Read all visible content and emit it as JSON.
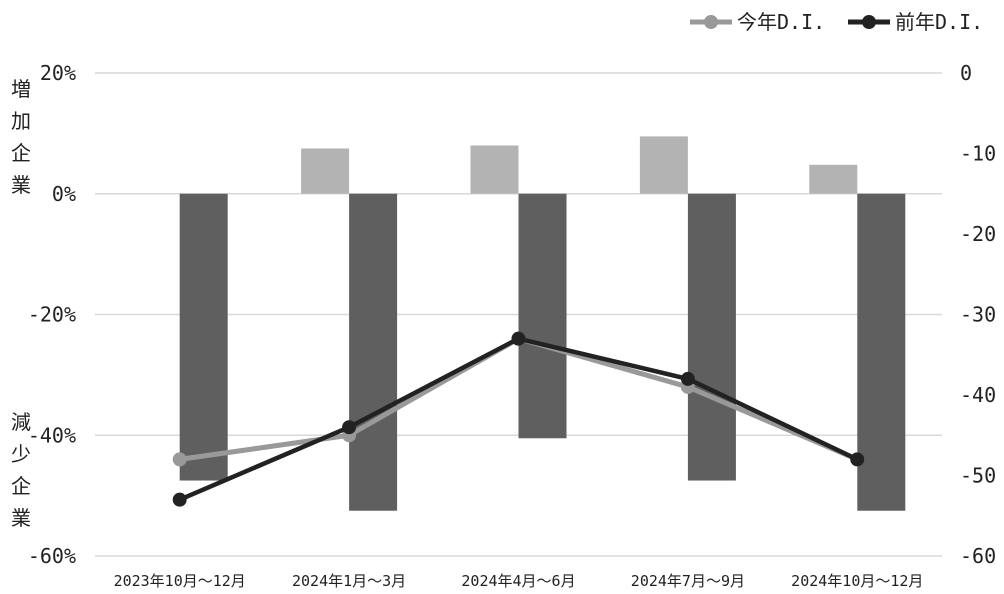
{
  "chart_data": {
    "type": "bar",
    "categories": [
      "2023年10月～12月",
      "2024年1月～3月",
      "2024年4月～6月",
      "2024年7月～9月",
      "2024年10月～12月"
    ],
    "bar_series": [
      {
        "name": "増加企業",
        "values": [
          0,
          7.5,
          8.0,
          9.5,
          4.8
        ],
        "color": "#b3b3b3"
      },
      {
        "name": "減少企業",
        "values": [
          -47.5,
          -52.5,
          -40.5,
          -47.5,
          -52.5
        ],
        "color": "#5f5f5f"
      }
    ],
    "line_series": [
      {
        "name": "今年D.I.",
        "values": [
          -48,
          -45,
          -33,
          -39,
          -48
        ],
        "color": "#999999"
      },
      {
        "name": "前年D.I.",
        "values": [
          -53,
          -44,
          -33,
          -38,
          -48
        ],
        "color": "#222222"
      }
    ],
    "left_axis": {
      "ylim": [
        -60,
        20
      ],
      "ticks": [
        "20%",
        "0%",
        "-20%",
        "-40%",
        "-60%"
      ]
    },
    "right_axis": {
      "ylim": [
        -60,
        0
      ],
      "ticks": [
        "0",
        "-10",
        "-20",
        "-30",
        "-40",
        "-50",
        "-60"
      ]
    },
    "left_axis_labels": {
      "top": "増加企業",
      "bottom": "減少企業"
    },
    "legend": {
      "position": "top-right",
      "items": [
        "今年D.I.",
        "前年D.I."
      ]
    },
    "grid": true
  }
}
